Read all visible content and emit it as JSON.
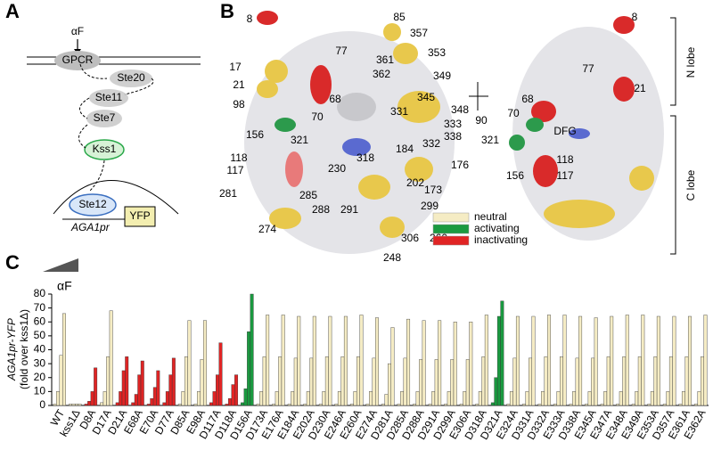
{
  "panel_labels": [
    "A",
    "B",
    "C"
  ],
  "pathway": {
    "ligand": "αF",
    "nodes": [
      "GPCR",
      "Ste20",
      "Ste11",
      "Ste7",
      "Kss1",
      "Ste12",
      "YFP"
    ],
    "promoter": "AGA1pr"
  },
  "structure": {
    "left_labels": [
      "8",
      "85",
      "357",
      "77",
      "361",
      "353",
      "17",
      "362",
      "349",
      "21",
      "345",
      "98",
      "68",
      "348",
      "70",
      "331",
      "333",
      "156",
      "321",
      "338",
      "332",
      "184",
      "118",
      "318",
      "176",
      "117",
      "230",
      "202",
      "281",
      "285",
      "173",
      "288",
      "291",
      "299",
      "274",
      "306",
      "260",
      "248"
    ],
    "right_labels": [
      "8",
      "77",
      "21",
      "68",
      "70",
      "321",
      "DFG",
      "156",
      "118",
      "117"
    ],
    "rotation": "90",
    "lobes": [
      "N lobe",
      "C lobe"
    ],
    "legend": [
      {
        "label": "neutral",
        "color": "#f5ecc4"
      },
      {
        "label": "activating",
        "color": "#1a9a40"
      },
      {
        "label": "inactivating",
        "color": "#e02424"
      }
    ]
  },
  "chart_data": {
    "type": "grouped-bar",
    "ylabel": [
      "AGA1pr-YFP",
      "(fold over kss1Δ)"
    ],
    "dose_label": "αF",
    "categories": [
      "WT",
      "kss1Δ",
      "D8A",
      "D17A",
      "D21A",
      "E68A",
      "E70A",
      "D77A",
      "D85A",
      "E98A",
      "D117A",
      "D118A",
      "D156A",
      "D173A",
      "E176A",
      "E184A",
      "E202A",
      "D230A",
      "E246A",
      "E260A",
      "E274A",
      "D281A",
      "D285A",
      "D288A",
      "D291A",
      "D299A",
      "E306A",
      "D318A",
      "D321A",
      "E324A",
      "D331A",
      "D332A",
      "E333A",
      "D338A",
      "E345A",
      "E347A",
      "E348A",
      "E349A",
      "E353A",
      "D357A",
      "E361A",
      "E362A"
    ],
    "classes": [
      0,
      0,
      2,
      0,
      2,
      2,
      2,
      2,
      0,
      0,
      2,
      2,
      1,
      0,
      0,
      0,
      0,
      0,
      0,
      0,
      0,
      0,
      0,
      0,
      0,
      0,
      0,
      0,
      1,
      0,
      0,
      0,
      0,
      0,
      0,
      0,
      0,
      0,
      0,
      0,
      0,
      0
    ],
    "values": [
      [
        1,
        10,
        36,
        66
      ],
      [
        1,
        1,
        1,
        1
      ],
      [
        1,
        3,
        10,
        27
      ],
      [
        2,
        10,
        35,
        68
      ],
      [
        2,
        10,
        25,
        35
      ],
      [
        2,
        8,
        22,
        32
      ],
      [
        1,
        5,
        13,
        25
      ],
      [
        2,
        10,
        22,
        34
      ],
      [
        1,
        10,
        35,
        61
      ],
      [
        1,
        10,
        33,
        61
      ],
      [
        2,
        10,
        22,
        45
      ],
      [
        1,
        5,
        15,
        22
      ],
      [
        2,
        12,
        53,
        80
      ],
      [
        1,
        10,
        35,
        65
      ],
      [
        1,
        10,
        35,
        65
      ],
      [
        1,
        10,
        34,
        64
      ],
      [
        1,
        10,
        34,
        64
      ],
      [
        1,
        10,
        35,
        64
      ],
      [
        1,
        10,
        35,
        64
      ],
      [
        1,
        10,
        35,
        65
      ],
      [
        1,
        10,
        34,
        63
      ],
      [
        1,
        8,
        30,
        56
      ],
      [
        1,
        10,
        34,
        62
      ],
      [
        1,
        10,
        33,
        61
      ],
      [
        1,
        10,
        33,
        61
      ],
      [
        1,
        10,
        33,
        60
      ],
      [
        1,
        10,
        33,
        60
      ],
      [
        1,
        10,
        35,
        65
      ],
      [
        2,
        20,
        64,
        75
      ],
      [
        1,
        10,
        34,
        64
      ],
      [
        1,
        10,
        34,
        64
      ],
      [
        1,
        10,
        35,
        65
      ],
      [
        1,
        10,
        35,
        65
      ],
      [
        1,
        10,
        34,
        64
      ],
      [
        1,
        10,
        34,
        63
      ],
      [
        1,
        10,
        35,
        64
      ],
      [
        1,
        10,
        35,
        65
      ],
      [
        1,
        10,
        35,
        65
      ],
      [
        1,
        10,
        35,
        64
      ],
      [
        1,
        10,
        35,
        64
      ],
      [
        1,
        10,
        35,
        64
      ],
      [
        1,
        10,
        35,
        65
      ]
    ],
    "ylim": [
      0,
      80
    ],
    "yticks": [
      0,
      10,
      20,
      30,
      40,
      50,
      60,
      70,
      80
    ]
  }
}
